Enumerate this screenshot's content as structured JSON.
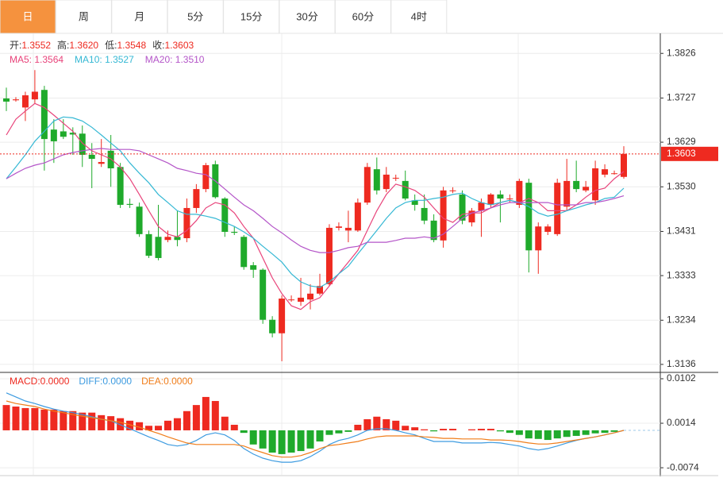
{
  "tabs": [
    "日",
    "周",
    "月",
    "5分",
    "15分",
    "30分",
    "60分",
    "4时"
  ],
  "chart_data": [
    {
      "type": "candlestick",
      "summary": [
        {
          "label": "开:",
          "value": "1.3552"
        },
        {
          "label": "高:",
          "value": "1.3620"
        },
        {
          "label": "低:",
          "value": "1.3548"
        },
        {
          "label": "收:",
          "value": "1.3603"
        }
      ],
      "up_color": "#ee2a20",
      "down_color": "#1faa2b",
      "ylim": [
        1.312,
        1.3874
      ],
      "yticks": [
        1.3826,
        1.3727,
        1.3629,
        {
          "value": 1.353,
          "label": "1.3530"
        },
        1.3431,
        1.3333,
        1.3234,
        1.3136
      ],
      "grid": true,
      "last_price": 1.3603,
      "open": [
        1.3726,
        1.3722,
        1.3706,
        1.3724,
        1.3745,
        1.3657,
        1.3653,
        1.365,
        1.3648,
        1.3601,
        1.3581,
        1.361,
        1.3574,
        1.3492,
        1.3486,
        1.3425,
        1.3419,
        1.3412,
        1.3419,
        1.3416,
        1.3483,
        1.3525,
        1.358,
        1.3504,
        1.343,
        1.3419,
        1.3356,
        1.3346,
        1.3235,
        1.3205,
        1.328,
        1.3275,
        1.328,
        1.3293,
        1.3314,
        1.3439,
        1.3433,
        1.3433,
        1.3495,
        1.3569,
        1.3525,
        1.355,
        1.3543,
        1.35,
        1.3483,
        1.3455,
        1.3411,
        1.3522,
        1.3513,
        1.3451,
        1.3477,
        1.349,
        1.3513,
        1.3504,
        1.349,
        1.3539,
        1.3389,
        1.343,
        1.3425,
        1.3486,
        1.3543,
        1.3522,
        1.35,
        1.3557,
        1.356,
        1.3552
      ],
      "high": [
        1.375,
        1.3729,
        1.3741,
        1.3789,
        1.3754,
        1.368,
        1.368,
        1.3662,
        1.3666,
        1.3627,
        1.3636,
        1.3645,
        1.3583,
        1.3504,
        1.3495,
        1.3433,
        1.349,
        1.3433,
        1.3477,
        1.3504,
        1.3536,
        1.3583,
        1.3588,
        1.3507,
        1.3442,
        1.3423,
        1.3363,
        1.3349,
        1.3243,
        1.3289,
        1.3289,
        1.3328,
        1.3314,
        1.3337,
        1.3447,
        1.3451,
        1.3477,
        1.3504,
        1.3583,
        1.3595,
        1.3574,
        1.3557,
        1.3566,
        1.3513,
        1.3513,
        1.3469,
        1.353,
        1.3529,
        1.3522,
        1.3483,
        1.3504,
        1.3516,
        1.3522,
        1.3513,
        1.3548,
        1.3548,
        1.3451,
        1.3447,
        1.3548,
        1.3592,
        1.3588,
        1.3543,
        1.3588,
        1.358,
        1.3566,
        1.362
      ],
      "low": [
        1.3698,
        1.3719,
        1.3676,
        1.3715,
        1.3566,
        1.3583,
        1.3636,
        1.3601,
        1.3574,
        1.3527,
        1.3574,
        1.353,
        1.3483,
        1.3483,
        1.3419,
        1.3372,
        1.3367,
        1.3407,
        1.3398,
        1.3407,
        1.3472,
        1.3518,
        1.3504,
        1.3419,
        1.3423,
        1.3346,
        1.3328,
        1.3226,
        1.3196,
        1.3143,
        1.3275,
        1.3266,
        1.3258,
        1.3289,
        1.331,
        1.3433,
        1.3407,
        1.343,
        1.349,
        1.3513,
        1.3518,
        1.3543,
        1.35,
        1.3477,
        1.3447,
        1.3407,
        1.3395,
        1.3516,
        1.3447,
        1.3442,
        1.3419,
        1.3483,
        1.3451,
        1.3495,
        1.3483,
        1.334,
        1.3337,
        1.3423,
        1.3421,
        1.3477,
        1.3518,
        1.3518,
        1.349,
        1.3551,
        1.3557,
        1.3548
      ],
      "close": [
        1.3719,
        1.3724,
        1.3733,
        1.3741,
        1.3636,
        1.3631,
        1.3641,
        1.3646,
        1.3601,
        1.3592,
        1.3585,
        1.3571,
        1.349,
        1.349,
        1.3425,
        1.3377,
        1.3372,
        1.3419,
        1.3412,
        1.3483,
        1.3525,
        1.3578,
        1.3507,
        1.343,
        1.3428,
        1.3352,
        1.3346,
        1.3235,
        1.3205,
        1.3282,
        1.328,
        1.3284,
        1.3293,
        1.331,
        1.3439,
        1.3442,
        1.3439,
        1.3495,
        1.3574,
        1.3522,
        1.3557,
        1.355,
        1.3504,
        1.349,
        1.3455,
        1.3412,
        1.3522,
        1.3522,
        1.3455,
        1.3477,
        1.3495,
        1.3513,
        1.3504,
        1.3504,
        1.3543,
        1.3389,
        1.3442,
        1.3442,
        1.3539,
        1.3543,
        1.3525,
        1.353,
        1.3571,
        1.3569,
        1.356,
        1.3603
      ],
      "overlays": [
        {
          "label": "MA5: 1.3564",
          "color": "#e8437a",
          "values": [
            1.3645,
            1.368,
            1.3698,
            1.3715,
            1.3706,
            1.3689,
            1.3671,
            1.3653,
            1.3627,
            1.361,
            1.3601,
            1.3592,
            1.3574,
            1.3548,
            1.3513,
            1.3477,
            1.3442,
            1.3425,
            1.3419,
            1.3433,
            1.3455,
            1.3483,
            1.3495,
            1.349,
            1.3472,
            1.3442,
            1.3416,
            1.3372,
            1.3328,
            1.3293,
            1.3266,
            1.3258,
            1.3275,
            1.3284,
            1.331,
            1.3337,
            1.3363,
            1.3389,
            1.3433,
            1.3477,
            1.3513,
            1.3536,
            1.353,
            1.3522,
            1.3507,
            1.3483,
            1.346,
            1.3451,
            1.3469,
            1.3472,
            1.3472,
            1.3483,
            1.3495,
            1.35,
            1.3495,
            1.3504,
            1.3495,
            1.3477,
            1.3477,
            1.3477,
            1.349,
            1.3507,
            1.3522,
            1.3527,
            1.3548,
            1.3564
          ]
        },
        {
          "label": "MA10: 1.3527",
          "color": "#35b8d4",
          "values": [
            1.3548,
            1.3574,
            1.3601,
            1.3631,
            1.3653,
            1.3676,
            1.3685,
            1.3683,
            1.3676,
            1.3662,
            1.3645,
            1.3627,
            1.361,
            1.3583,
            1.356,
            1.3539,
            1.3513,
            1.3495,
            1.3477,
            1.3469,
            1.3469,
            1.3465,
            1.346,
            1.3451,
            1.3442,
            1.343,
            1.3416,
            1.3398,
            1.3381,
            1.3363,
            1.3337,
            1.3319,
            1.331,
            1.3307,
            1.3319,
            1.3337,
            1.3354,
            1.3381,
            1.3407,
            1.3433,
            1.346,
            1.3483,
            1.3495,
            1.35,
            1.35,
            1.3504,
            1.3507,
            1.3513,
            1.3516,
            1.3504,
            1.3495,
            1.349,
            1.3495,
            1.35,
            1.3495,
            1.3486,
            1.3472,
            1.3465,
            1.3469,
            1.3477,
            1.3483,
            1.349,
            1.3495,
            1.3504,
            1.3507,
            1.3527
          ]
        },
        {
          "label": "MA20: 1.3510",
          "color": "#b455c8",
          "values": [
            1.3548,
            1.356,
            1.3571,
            1.3578,
            1.3583,
            1.3592,
            1.3601,
            1.3606,
            1.361,
            1.3613,
            1.3615,
            1.3613,
            1.3613,
            1.3613,
            1.361,
            1.3601,
            1.3592,
            1.3583,
            1.3571,
            1.3566,
            1.356,
            1.3557,
            1.3543,
            1.3525,
            1.3507,
            1.349,
            1.3477,
            1.346,
            1.3442,
            1.3428,
            1.3412,
            1.3398,
            1.3389,
            1.3384,
            1.3384,
            1.3389,
            1.3395,
            1.3398,
            1.3407,
            1.3407,
            1.3407,
            1.3411,
            1.3416,
            1.3416,
            1.3419,
            1.3416,
            1.3425,
            1.3442,
            1.346,
            1.3472,
            1.3477,
            1.3483,
            1.349,
            1.3495,
            1.3495,
            1.3495,
            1.3495,
            1.3495,
            1.349,
            1.349,
            1.349,
            1.3495,
            1.3495,
            1.3499,
            1.3504,
            1.351
          ]
        }
      ]
    },
    {
      "type": "macd",
      "up_color": "#ee2a20",
      "down_color": "#1faa2b",
      "ylim": [
        -0.0088,
        0.0113
      ],
      "yticks": [
        0.0102,
        0.0014,
        -0.0074
      ],
      "grid": true,
      "histogram": {
        "label": "MACD:0.0000",
        "color": "#ee2a20",
        "values": [
          0.005,
          0.0047,
          0.0044,
          0.0044,
          0.0041,
          0.0041,
          0.0038,
          0.0038,
          0.0035,
          0.0035,
          0.003,
          0.0028,
          0.0024,
          0.0019,
          0.0016,
          0.0009,
          0.0009,
          0.0019,
          0.0024,
          0.0038,
          0.005,
          0.0066,
          0.0058,
          0.0027,
          0.0011,
          -0.0005,
          -0.0028,
          -0.0036,
          -0.0044,
          -0.0047,
          -0.0044,
          -0.0041,
          -0.0036,
          -0.0022,
          -0.0009,
          -0.0006,
          -0.0003,
          0.0011,
          0.0022,
          0.0027,
          0.0022,
          0.0019,
          0.0009,
          0.0006,
          0.0002,
          -0.0002,
          0.0003,
          0.0003,
          0,
          0.0002,
          0.0003,
          0.0003,
          -0.0002,
          -0.0005,
          -0.0009,
          -0.0016,
          -0.0017,
          -0.0019,
          -0.0016,
          -0.0013,
          -0.0011,
          -0.0009,
          -0.0006,
          -0.0005,
          -0.0003,
          0
        ]
      },
      "series": [
        {
          "label": "DIFF:0.0000",
          "color": "#3d9be0",
          "values": [
            0.0074,
            0.0066,
            0.0058,
            0.0053,
            0.0047,
            0.0042,
            0.0038,
            0.0035,
            0.0031,
            0.0027,
            0.0022,
            0.0019,
            0.0011,
            0.0003,
            -0.0005,
            -0.0013,
            -0.002,
            -0.0028,
            -0.0031,
            -0.0028,
            -0.002,
            -0.0009,
            -0.0005,
            -0.0009,
            -0.002,
            -0.0036,
            -0.0047,
            -0.0055,
            -0.006,
            -0.0063,
            -0.0063,
            -0.006,
            -0.0052,
            -0.0041,
            -0.0028,
            -0.002,
            -0.0016,
            -0.0009,
            0,
            0.0003,
            0.0003,
            0,
            -0.0005,
            -0.0009,
            -0.0016,
            -0.0022,
            -0.0022,
            -0.0022,
            -0.0025,
            -0.0025,
            -0.0025,
            -0.0024,
            -0.0025,
            -0.0028,
            -0.0031,
            -0.0036,
            -0.0039,
            -0.0036,
            -0.0031,
            -0.0025,
            -0.002,
            -0.0016,
            -0.0013,
            -0.0009,
            -0.0005,
            0
          ]
        },
        {
          "label": "DEA:0.0000",
          "color": "#f07d1a",
          "values": [
            0.0058,
            0.0053,
            0.005,
            0.0047,
            0.0042,
            0.0038,
            0.0035,
            0.0031,
            0.0028,
            0.0025,
            0.0022,
            0.0019,
            0.0016,
            0.0011,
            0.0006,
            0,
            -0.0006,
            -0.0013,
            -0.0019,
            -0.0025,
            -0.0028,
            -0.0028,
            -0.0028,
            -0.0028,
            -0.0028,
            -0.0031,
            -0.0038,
            -0.0044,
            -0.005,
            -0.0053,
            -0.0053,
            -0.005,
            -0.0044,
            -0.0036,
            -0.003,
            -0.0028,
            -0.0025,
            -0.0022,
            -0.0017,
            -0.0013,
            -0.0011,
            -0.0011,
            -0.0011,
            -0.0011,
            -0.0013,
            -0.0014,
            -0.0016,
            -0.0016,
            -0.0017,
            -0.0017,
            -0.0017,
            -0.0019,
            -0.0019,
            -0.002,
            -0.0022,
            -0.0025,
            -0.0027,
            -0.0027,
            -0.0025,
            -0.0022,
            -0.0019,
            -0.0016,
            -0.0013,
            -0.0009,
            -0.0005,
            0
          ]
        }
      ]
    }
  ]
}
